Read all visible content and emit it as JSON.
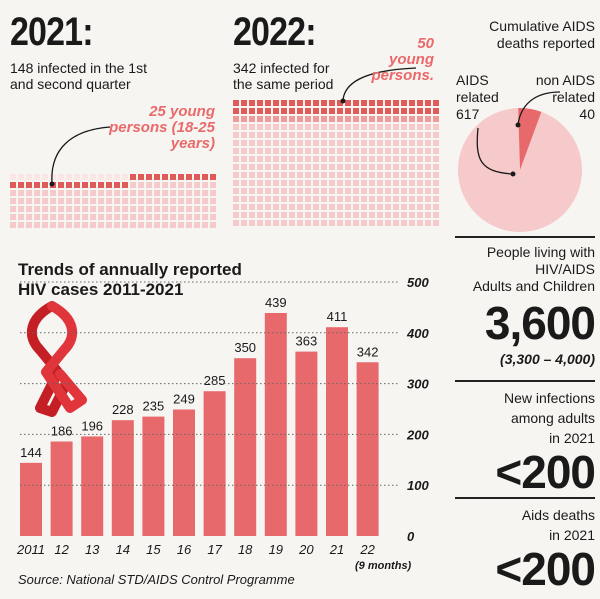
{
  "top_left": {
    "year": "2021:",
    "desc_line1": "148 infected in the 1st",
    "desc_line2": "and second quarter",
    "callout_line1": "25 young",
    "callout_line2": "persons (18-25",
    "callout_line3": "years)"
  },
  "top_middle": {
    "year": "2022:",
    "desc_line1": "342 infected for",
    "desc_line2": "the same period",
    "callout_line1": "50",
    "callout_line2": "young",
    "callout_line3": "persons."
  },
  "top_right": {
    "title_line1": "Cumulative AIDS",
    "title_line2": "deaths reported",
    "label_aids_line1": "AIDS",
    "label_aids_line2": "related",
    "label_aids_value": "617",
    "label_non_line1": "non AIDS",
    "label_non_line2": "related",
    "label_non_value": "40"
  },
  "right_col": {
    "plhiv_line1": "People living with",
    "plhiv_line2": "HIV/AIDS",
    "plhiv_line3": "Adults and Children",
    "plhiv_value": "3,600",
    "plhiv_range": "(3,300 – 4,000)",
    "newinf_line1": "New infections",
    "newinf_line2": "among adults",
    "newinf_line3": "in 2021",
    "newinf_value": "<200",
    "deaths_line1": "Aids deaths",
    "deaths_line2": "in 2021",
    "deaths_value": "<200"
  },
  "source": "Source: National STD/AIDS Control Programme",
  "colors": {
    "bar": "#e8696b",
    "light": "#f6caca",
    "mid": "#ef9a9a",
    "dark_accent": "#e05a5a",
    "ribbon": "#d4242a"
  },
  "chart_data": [
    {
      "type": "bar",
      "title": "Trends of annually reported HIV cases 2011-2021",
      "title_line1": "Trends of annually reported",
      "title_line2": "HIV cases 2011-2021",
      "categories": [
        "2011",
        "12",
        "13",
        "14",
        "15",
        "16",
        "17",
        "18",
        "19",
        "20",
        "21",
        "22"
      ],
      "x_note": "(9 months)",
      "values": [
        144,
        186,
        196,
        228,
        235,
        249,
        285,
        350,
        439,
        363,
        411,
        342
      ],
      "ylim": [
        0,
        500
      ],
      "yticks": [
        0,
        100,
        200,
        300,
        400,
        500
      ],
      "grid": true
    },
    {
      "type": "pie",
      "title": "Cumulative AIDS deaths reported",
      "labels": [
        "AIDS related",
        "non AIDS related"
      ],
      "values": [
        617,
        40
      ]
    }
  ]
}
